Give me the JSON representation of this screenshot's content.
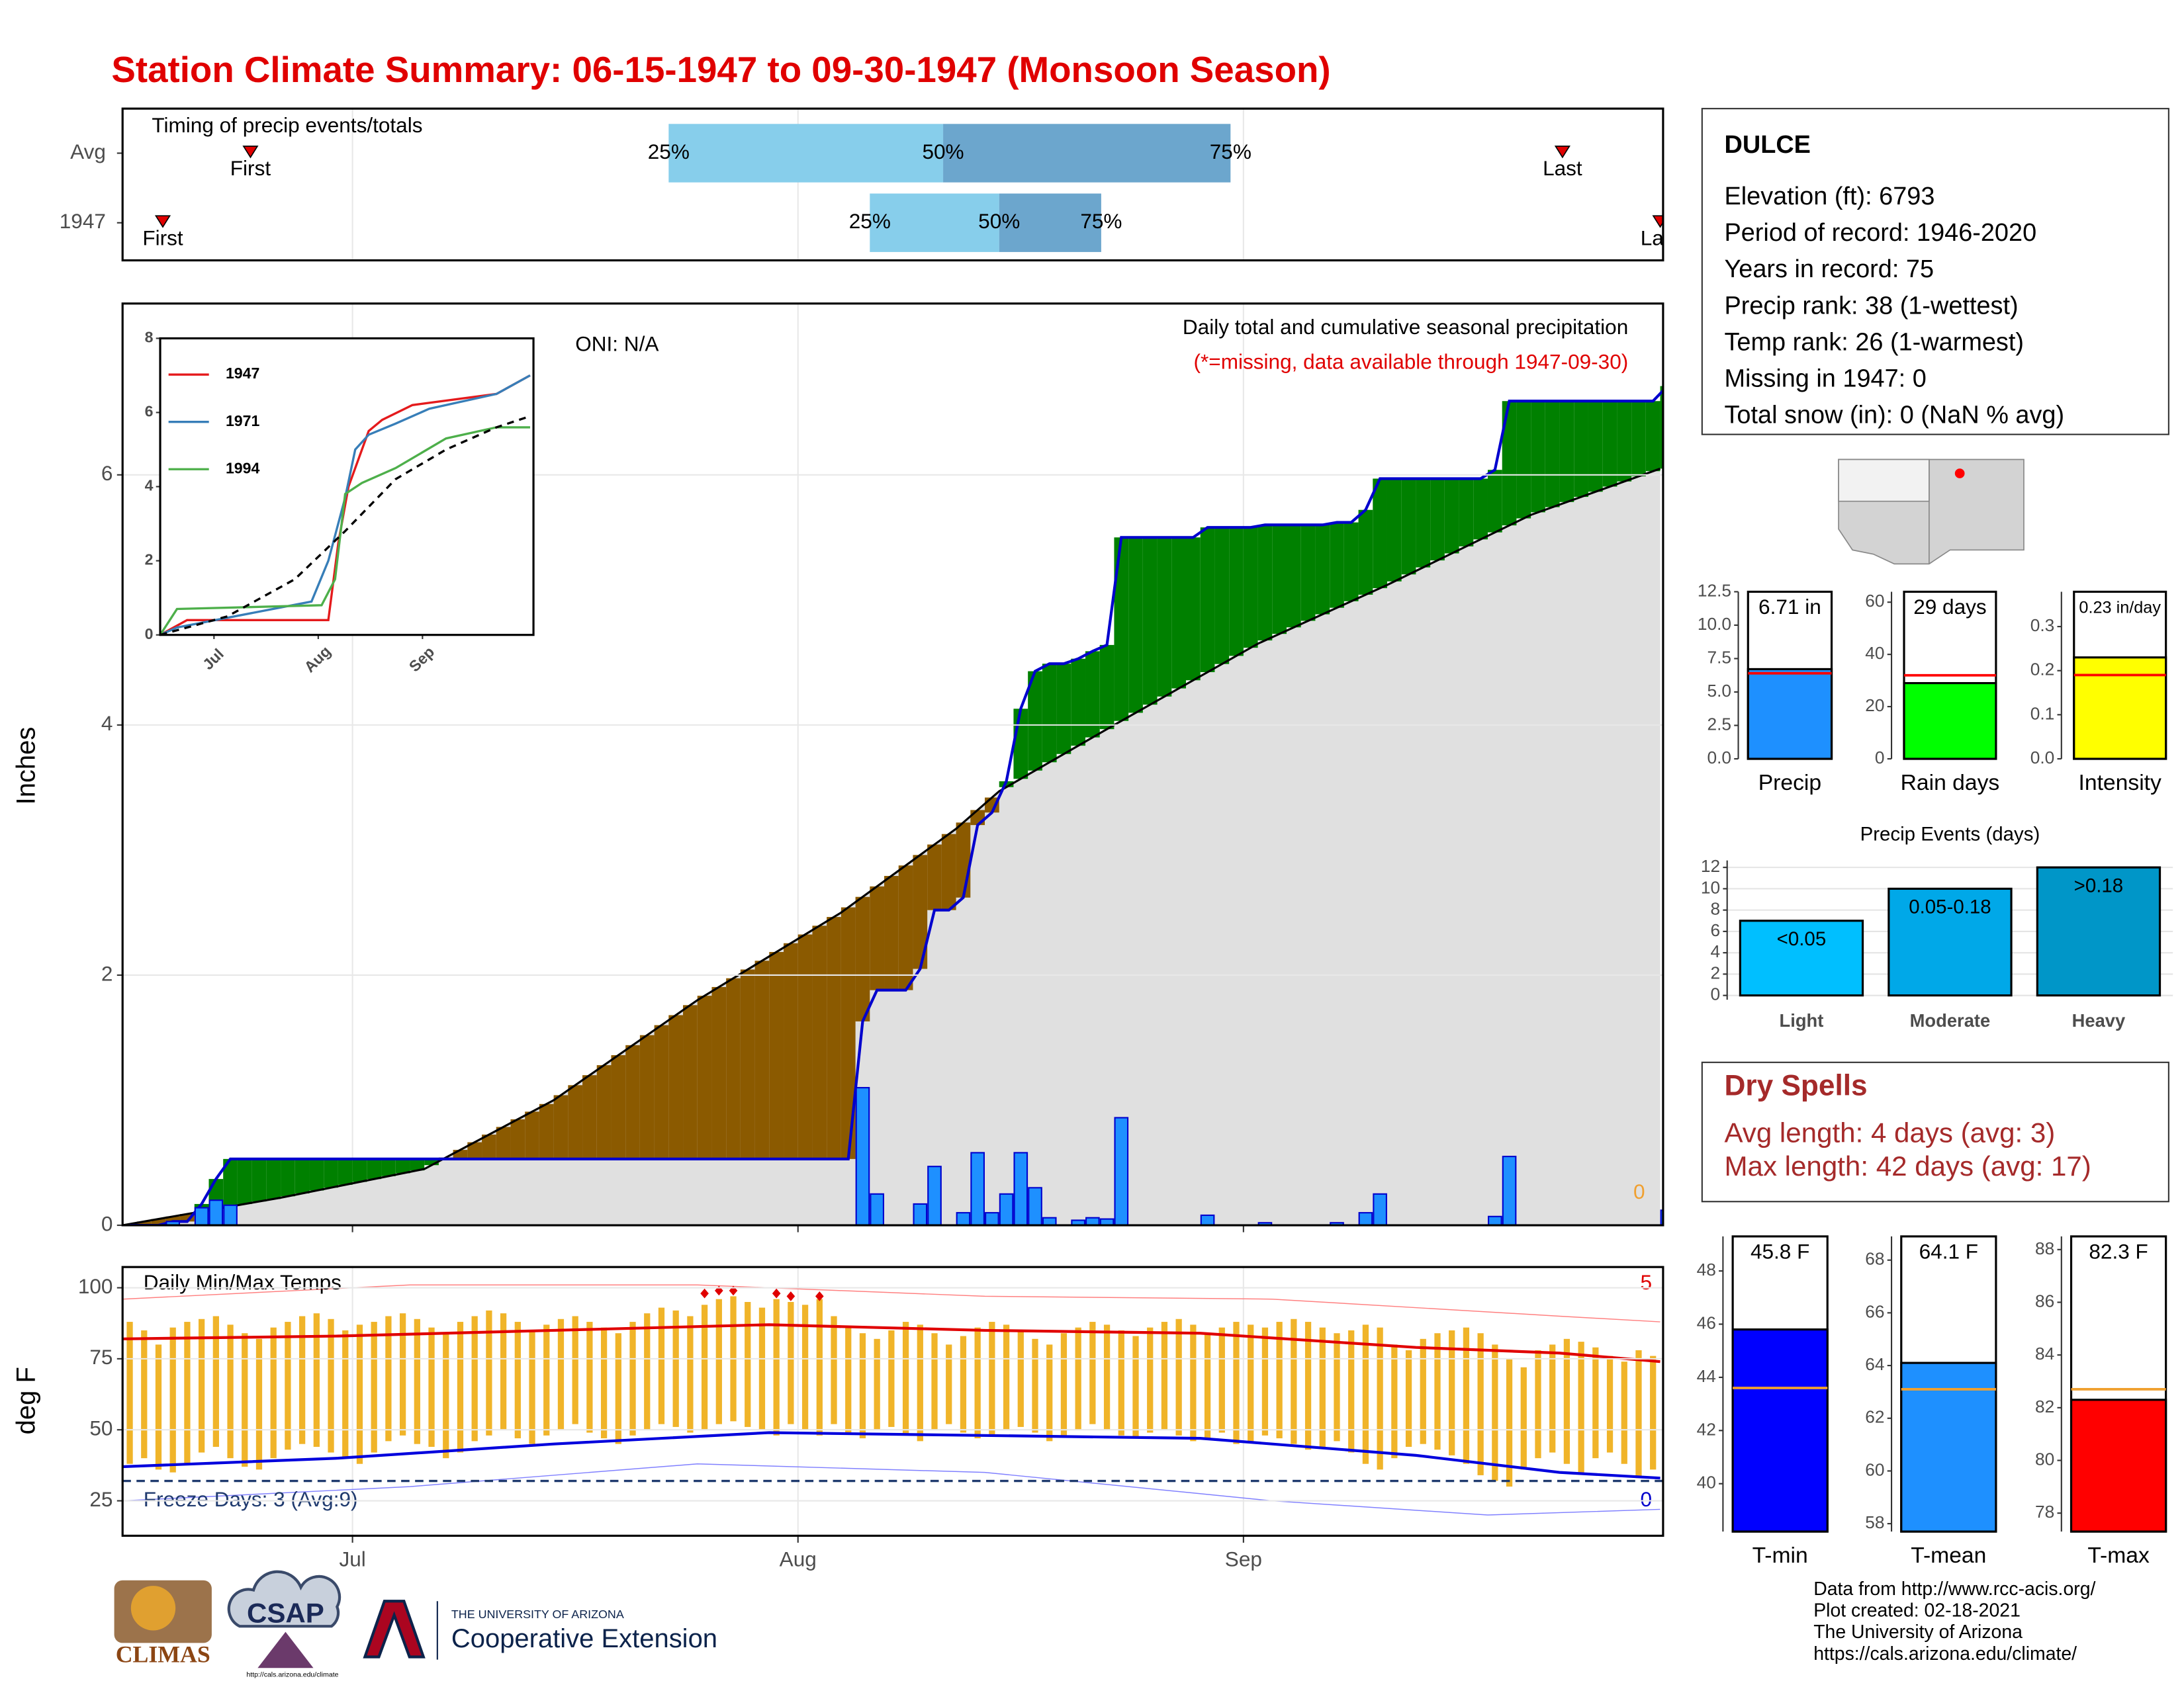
{
  "title": "Station Climate Summary: 06-15-1947 to 09-30-1947 (Monsoon Season)",
  "chart_data": [
    {
      "type": "timeline",
      "title": "Timing of precip events/totals",
      "xlim": [
        0,
        107.2
      ],
      "xticks": [
        16,
        47,
        78
      ],
      "first_label": "First",
      "last_label": "Last",
      "quartile_labels": [
        "25%",
        "50%",
        "75%"
      ],
      "light_color": "#87CEEB",
      "dark_color": "#6CA6CD",
      "marker_color": "#e00000",
      "rows": [
        {
          "name": "Avg",
          "first": 8.9,
          "q25": 38,
          "q50": 57.1,
          "q75": 77.1,
          "last": 100.2
        },
        {
          "name": "1947",
          "first": 2.8,
          "q25": 52,
          "q50": 61,
          "q75": 68.1,
          "last": 107
        }
      ]
    },
    {
      "type": "cumulative",
      "title": "Daily total and cumulative seasonal precipitation",
      "subtitle": "(*=missing, data available through 1947-09-30)",
      "annotation": "ONI: N/A",
      "snow_note": "0",
      "ylabel": "Inches",
      "xlim": [
        0,
        107.2
      ],
      "ylim": [
        0,
        7.37
      ],
      "yticks": [
        0,
        2,
        4,
        6
      ],
      "xticks": [
        16,
        47,
        78
      ],
      "grid": true,
      "bar_color": "#1E90FF",
      "line_color": "#0000CD",
      "above_color": "#008000",
      "below_color": "#8B5A00",
      "avg_color": "#e0e0e0",
      "values": [
        0,
        0,
        0,
        0.03,
        0,
        0.14,
        0.2,
        0.16,
        0,
        0,
        0,
        0,
        0,
        0,
        0,
        0,
        0,
        0,
        0,
        0,
        0,
        0,
        0,
        0,
        0,
        0,
        0,
        0,
        0,
        0,
        0,
        0,
        0,
        0,
        0,
        0,
        0,
        0,
        0,
        0,
        0,
        0,
        0,
        0,
        0,
        0,
        0,
        0,
        0,
        0,
        0,
        1.1,
        0.25,
        0,
        0,
        0.17,
        0.47,
        0,
        0.1,
        0.58,
        0.1,
        0.25,
        0.58,
        0.3,
        0.06,
        0,
        0.04,
        0.06,
        0.05,
        0.86,
        0,
        0,
        0,
        0,
        0,
        0.08,
        0,
        0,
        0,
        0.02,
        0,
        0,
        0,
        0,
        0.02,
        0,
        0.1,
        0.25,
        0,
        0,
        0,
        0,
        0,
        0,
        0,
        0.07,
        0.55,
        0,
        0,
        0,
        0,
        0,
        0,
        0,
        0,
        0,
        0,
        0.12
      ],
      "average": {
        "x": [
          0,
          11,
          21,
          30,
          40,
          50,
          58,
          61,
          69,
          79,
          88,
          98,
          107
        ],
        "values": [
          0,
          0.22,
          0.45,
          1.0,
          1.8,
          2.5,
          3.17,
          3.47,
          4.0,
          4.65,
          5.12,
          5.68,
          6.05
        ]
      }
    },
    {
      "type": "line",
      "xlim": [
        0,
        111
      ],
      "ylim": [
        0,
        8
      ],
      "yticks": [
        0,
        2,
        4,
        6,
        8
      ],
      "xticks": [
        {
          "value": 16,
          "label": "Jul"
        },
        {
          "value": 47,
          "label": "Aug"
        },
        {
          "value": 78,
          "label": "Sep"
        }
      ],
      "series": [
        {
          "name": "1947",
          "color": "#e41a1c",
          "x": [
            0,
            8,
            50,
            53,
            56,
            62,
            66,
            75,
            100,
            110
          ],
          "values": [
            0,
            0.4,
            0.4,
            2.5,
            4,
            5.5,
            5.8,
            6.2,
            6.5,
            7.0
          ]
        },
        {
          "name": "1971",
          "color": "#377eb8",
          "x": [
            0,
            5,
            45,
            50,
            55,
            58,
            62,
            70,
            80,
            100,
            110
          ],
          "values": [
            0,
            0.2,
            0.9,
            2,
            3.7,
            5,
            5.4,
            5.7,
            6.1,
            6.5,
            7
          ]
        },
        {
          "name": "1994",
          "color": "#4daf4a",
          "x": [
            0,
            5,
            48,
            52,
            55,
            60,
            70,
            85,
            100,
            110
          ],
          "values": [
            0,
            0.7,
            0.8,
            1.5,
            3.8,
            4.1,
            4.5,
            5.3,
            5.6,
            5.6
          ]
        }
      ],
      "average": {
        "x": [
          0,
          20,
          40,
          55,
          70,
          85,
          100,
          110
        ],
        "values": [
          0,
          0.5,
          1.5,
          2.8,
          4.2,
          5.0,
          5.6,
          5.9
        ]
      }
    },
    {
      "type": "temperature",
      "title": "Daily Min/Max Temps",
      "ylabel": "deg F",
      "xlim": [
        0,
        107.2
      ],
      "ylim": [
        12.7,
        107.3
      ],
      "yticks": [
        25,
        50,
        75,
        100
      ],
      "xticks": [
        {
          "value": 16,
          "label": "Jul"
        },
        {
          "value": 47,
          "label": "Aug"
        },
        {
          "value": 78,
          "label": "Sep"
        }
      ],
      "grid": true,
      "record_high_count": "5",
      "record_low_count": "0",
      "freeze_text": "Freeze Days: 3 (Avg:9)",
      "freeze": 32,
      "bar_color": "#F0B429",
      "tmax": [
        88,
        85,
        80,
        86,
        88,
        89,
        90,
        87,
        84,
        82,
        86,
        88,
        90,
        91,
        89,
        85,
        87,
        88,
        90,
        91,
        89,
        86,
        84,
        88,
        90,
        92,
        91,
        88,
        85,
        87,
        89,
        90,
        88,
        86,
        84,
        88,
        91,
        93,
        92,
        90,
        94,
        96,
        97,
        95,
        93,
        96,
        95,
        94,
        96,
        90,
        86,
        84,
        82,
        85,
        88,
        87,
        84,
        80,
        83,
        86,
        88,
        87,
        85,
        82,
        80,
        84,
        86,
        88,
        87,
        85,
        83,
        86,
        88,
        89,
        87,
        84,
        86,
        88,
        87,
        86,
        88,
        89,
        88,
        86,
        84,
        85,
        87,
        86,
        80,
        78,
        82,
        84,
        85,
        86,
        84,
        80,
        75,
        72,
        78,
        80,
        82,
        81,
        79,
        76,
        74,
        78,
        76,
        70
      ],
      "tmin": [
        38,
        40,
        36,
        35,
        38,
        42,
        44,
        40,
        37,
        36,
        40,
        43,
        45,
        44,
        42,
        40,
        38,
        42,
        46,
        48,
        45,
        44,
        40,
        42,
        46,
        48,
        50,
        47,
        45,
        48,
        50,
        52,
        49,
        47,
        45,
        48,
        50,
        52,
        51,
        49,
        50,
        52,
        53,
        51,
        50,
        48,
        52,
        50,
        48,
        52,
        49,
        47,
        50,
        51,
        48,
        46,
        50,
        52,
        49,
        47,
        48,
        50,
        51,
        49,
        46,
        48,
        50,
        52,
        50,
        48,
        47,
        49,
        50,
        48,
        46,
        47,
        49,
        45,
        46,
        48,
        47,
        45,
        43,
        44,
        46,
        42,
        38,
        36,
        40,
        44,
        45,
        43,
        41,
        38,
        34,
        32,
        30,
        36,
        40,
        42,
        38,
        35,
        40,
        42,
        38,
        33,
        36,
        34
      ],
      "lines": [
        {
          "color": "#e00000",
          "width": 2,
          "x": [
            0,
            15,
            30,
            45,
            60,
            75,
            90,
            100,
            107
          ],
          "values": [
            82,
            83,
            85,
            87,
            85,
            84,
            79,
            77,
            74
          ]
        },
        {
          "color": "#0000dd",
          "width": 2,
          "x": [
            0,
            15,
            30,
            45,
            60,
            75,
            90,
            100,
            107
          ],
          "values": [
            37,
            40,
            45,
            49,
            48,
            47,
            41,
            35,
            33
          ]
        },
        {
          "color": "#ff8080",
          "width": 0.7,
          "x": [
            0,
            20,
            40,
            60,
            80,
            100,
            107
          ],
          "values": [
            96,
            101,
            101,
            97,
            96,
            90,
            88
          ]
        },
        {
          "color": "#8080ff",
          "width": 0.7,
          "x": [
            0,
            20,
            40,
            60,
            80,
            95,
            107
          ],
          "values": [
            25,
            30,
            38,
            35,
            25,
            20,
            22
          ]
        }
      ],
      "record_highs": {
        "color": "#e00000",
        "x": [
          40,
          41,
          42,
          45,
          46,
          48
        ],
        "values": [
          98,
          99,
          99,
          98,
          97,
          97
        ]
      }
    },
    {
      "type": "column",
      "label": "Precip",
      "ylim": [
        0,
        12.5
      ],
      "yticks": [
        {
          "value": 0,
          "label": "0.0"
        },
        2.5,
        {
          "value": 5,
          "label": "5.0"
        },
        7.5,
        {
          "value": 10,
          "label": "10.0"
        },
        12.5
      ],
      "values": [
        6.71
      ],
      "value_labels": [
        "6.71 in"
      ],
      "avg": 6.4,
      "color": "#1E90FF",
      "avg_color": "#ff0000"
    },
    {
      "type": "column",
      "label": "Rain days",
      "ylim": [
        0,
        64
      ],
      "yticks": [
        0,
        20,
        40,
        60
      ],
      "values": [
        29
      ],
      "value_labels": [
        "29 days"
      ],
      "avg": 32,
      "color": "#00FF00",
      "avg_color": "#ff0000"
    },
    {
      "type": "column",
      "label": "Intensity",
      "ylim": [
        0,
        0.379
      ],
      "yticks": [
        {
          "value": 0,
          "label": "0.0"
        },
        0.1,
        0.2,
        0.3
      ],
      "values": [
        0.23
      ],
      "value_labels": [
        "0.23 in/day"
      ],
      "avg": 0.19,
      "color": "#FFFF00",
      "avg_color": "#ff0000"
    },
    {
      "type": "bar",
      "title": "Precip Events (days)",
      "categories": [
        "Light",
        "Moderate",
        "Heavy"
      ],
      "values": [
        7,
        10,
        12
      ],
      "bin_labels": [
        "<0.05",
        "0.05-0.18",
        ">0.18"
      ],
      "colors": [
        "#00BFFF",
        "#00A8E8",
        "#0096C8"
      ],
      "ylim": [
        -0.4,
        12.65
      ],
      "yticks": [
        0,
        2,
        4,
        6,
        8,
        10,
        12
      ],
      "grid": true
    },
    {
      "type": "column",
      "label": "T-min",
      "ylim": [
        38.2,
        49.3
      ],
      "yticks": [
        40,
        42,
        44,
        46,
        48
      ],
      "values": [
        45.8
      ],
      "value_labels": [
        "45.8 F"
      ],
      "avg": 43.6,
      "color": "#0000FF",
      "avg_color": "#F0A030"
    },
    {
      "type": "column",
      "label": "T-mean",
      "ylim": [
        57.7,
        68.9
      ],
      "yticks": [
        58,
        60,
        62,
        64,
        66,
        68
      ],
      "values": [
        64.1
      ],
      "value_labels": [
        "64.1 F"
      ],
      "avg": 63.1,
      "color": "#1E90FF",
      "avg_color": "#F0A030"
    },
    {
      "type": "column",
      "label": "T-max",
      "ylim": [
        77.3,
        88.5
      ],
      "yticks": [
        78,
        80,
        82,
        84,
        86,
        88
      ],
      "values": [
        82.3
      ],
      "value_labels": [
        "82.3 F"
      ],
      "avg": 82.7,
      "color": "#FF0000",
      "avg_color": "#F0A030"
    }
  ],
  "station": {
    "name": "DULCE",
    "lines": [
      "Elevation (ft): 6793",
      "Period of record: 1946-2020",
      "Years in record: 75",
      "Precip rank: 38 (1-wettest)",
      "Temp rank: 26 (1-warmest)",
      "Missing in 1947: 0",
      "Total snow (in): 0 (NaN % avg)"
    ]
  },
  "dry_spells": {
    "title": "Dry Spells",
    "lines": [
      "Avg length: 4 days (avg: 3)",
      "Max length: 42 days (avg: 17)"
    ]
  },
  "credits": [
    "Data from http://www.rcc-acis.org/",
    "Plot created: 02-18-2021",
    "The University of Arizona",
    "https://cals.arizona.edu/climate/"
  ],
  "footer": {
    "climas": "CLIMAS",
    "csap": "CSAP",
    "csap_url": "http://cals.arizona.edu/climate",
    "university": "THE UNIVERSITY OF ARIZONA",
    "extension": "Cooperative Extension"
  }
}
